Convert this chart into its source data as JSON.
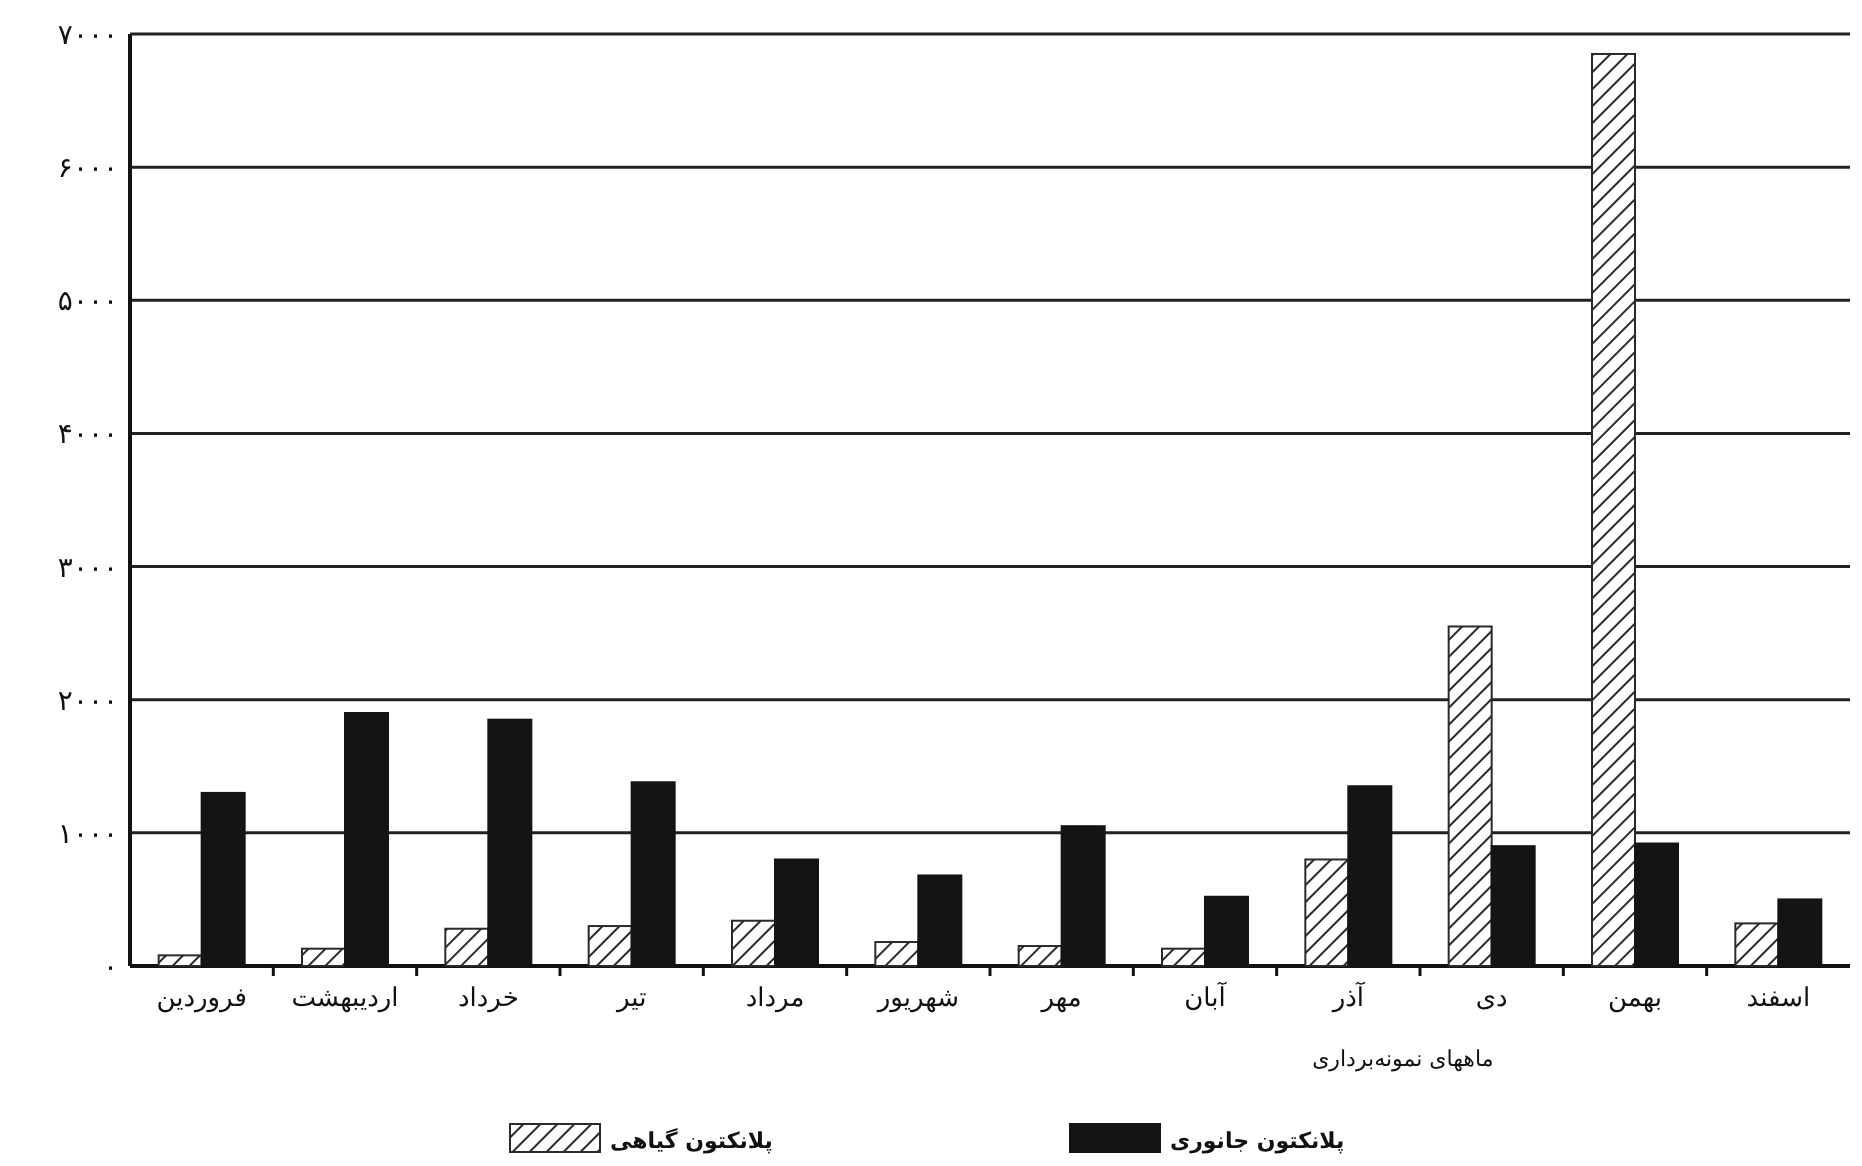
{
  "chart_data": {
    "type": "bar",
    "xlabel": "ماههای نمونه‌برداری",
    "categories": [
      "فروردین",
      "اردیبهشت",
      "خرداد",
      "تیر",
      "مرداد",
      "شهریور",
      "مهر",
      "آبان",
      "آذر",
      "دی",
      "بهمن",
      "اسفند"
    ],
    "series": [
      {
        "name": "پلانکتون گیاهی",
        "color": "#2a2a2a",
        "values": [
          80,
          130,
          280,
          300,
          340,
          180,
          150,
          130,
          800,
          2550,
          6850,
          320
        ]
      },
      {
        "name": "پلانکتون جانوری",
        "color": "#141414",
        "values": [
          1300,
          1900,
          1850,
          1380,
          800,
          680,
          1050,
          520,
          1350,
          900,
          920,
          500
        ]
      }
    ],
    "ylim": [
      0,
      7000
    ],
    "yticks": [
      {
        "value": 0,
        "label": "۰"
      },
      {
        "value": 1000,
        "label": "۱۰۰۰"
      },
      {
        "value": 2000,
        "label": "۲۰۰۰"
      },
      {
        "value": 3000,
        "label": "۳۰۰۰"
      },
      {
        "value": 4000,
        "label": "۴۰۰۰"
      },
      {
        "value": 5000,
        "label": "۵۰۰۰"
      },
      {
        "value": 6000,
        "label": "۶۰۰۰"
      },
      {
        "value": 7000,
        "label": "۷۰۰۰"
      }
    ],
    "grid": "y",
    "legend": "bottom"
  }
}
